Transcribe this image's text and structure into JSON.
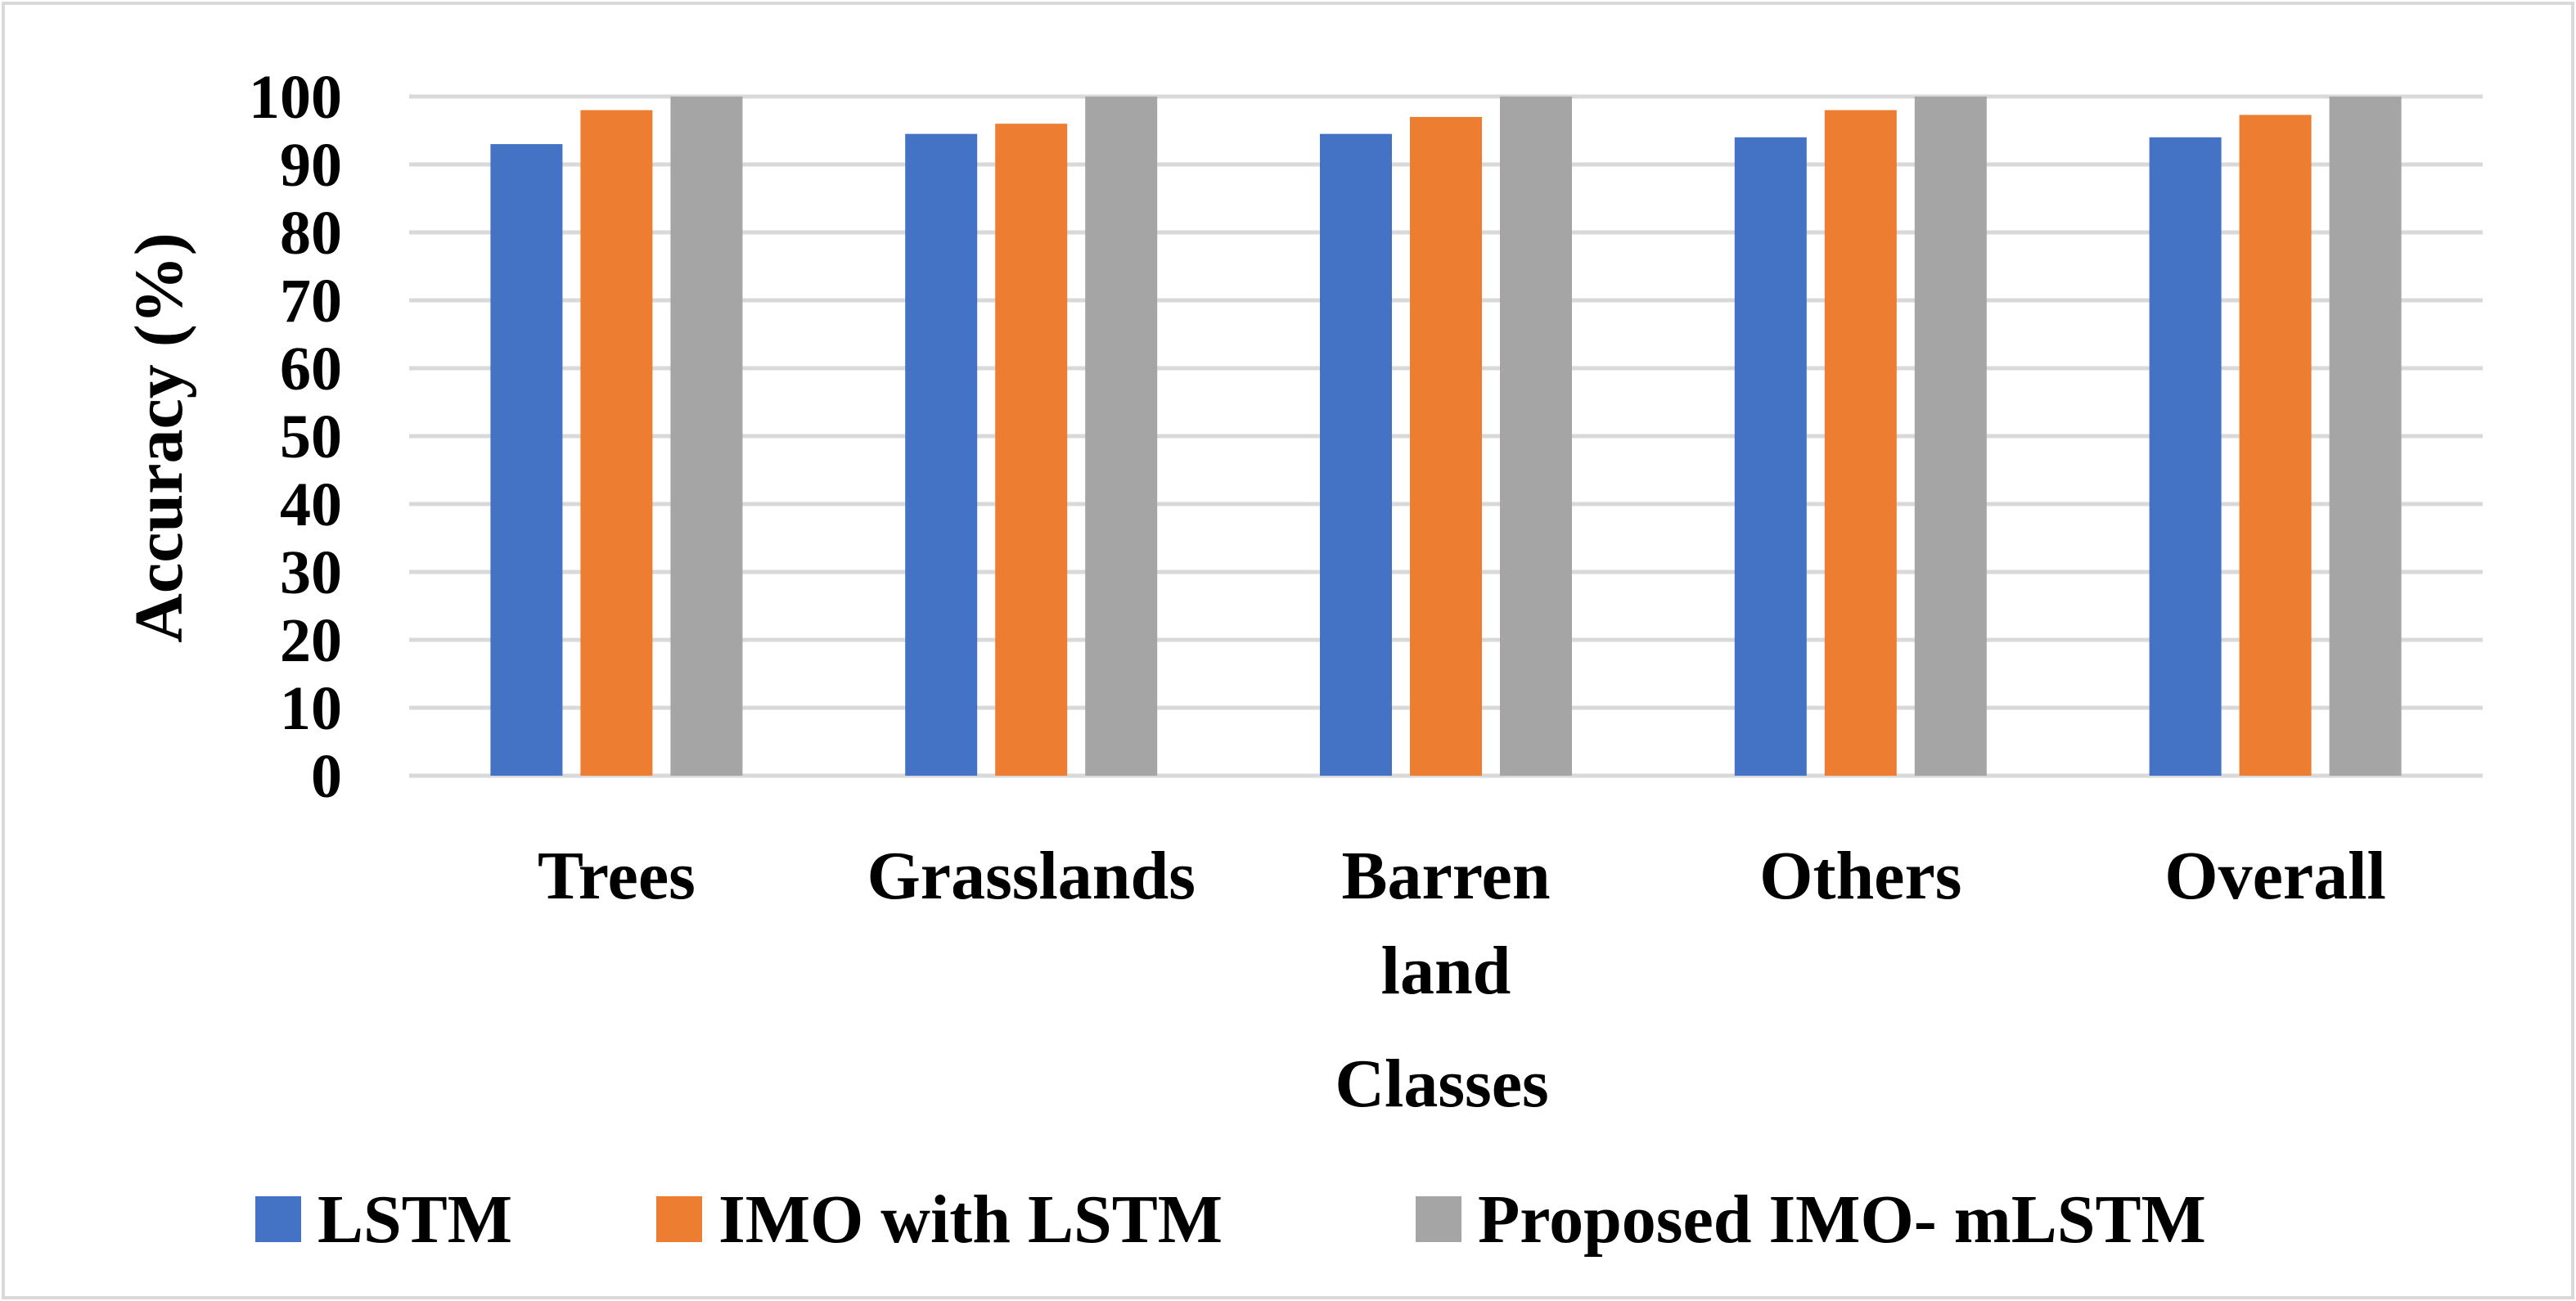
{
  "chart_data": {
    "type": "bar",
    "title": "",
    "xlabel": "Classes",
    "ylabel": "Accuracy (%)",
    "ylim": [
      0,
      100
    ],
    "yticks": [
      0,
      10,
      20,
      30,
      40,
      50,
      60,
      70,
      80,
      90,
      100
    ],
    "ytick_labels": [
      "0",
      "10",
      "20",
      "30",
      "40",
      "50",
      "60",
      "70",
      "80",
      "90",
      "100"
    ],
    "grid": true,
    "legend_position": "bottom",
    "categories": [
      {
        "lines": [
          "Trees"
        ]
      },
      {
        "lines": [
          "Grasslands"
        ]
      },
      {
        "lines": [
          "Barren",
          "land"
        ]
      },
      {
        "lines": [
          "Others"
        ]
      },
      {
        "lines": [
          "Overall"
        ]
      }
    ],
    "series": [
      {
        "name": "LSTM",
        "color": "#4472c4",
        "values": [
          93,
          94.5,
          94.5,
          94,
          94
        ]
      },
      {
        "name": "IMO with LSTM",
        "color": "#ed7d31",
        "values": [
          98,
          96,
          97,
          98,
          97.3
        ]
      },
      {
        "name": "Proposed IMO- mLSTM",
        "color": "#a5a5a5",
        "values": [
          100,
          100,
          100,
          100,
          100
        ]
      }
    ]
  }
}
